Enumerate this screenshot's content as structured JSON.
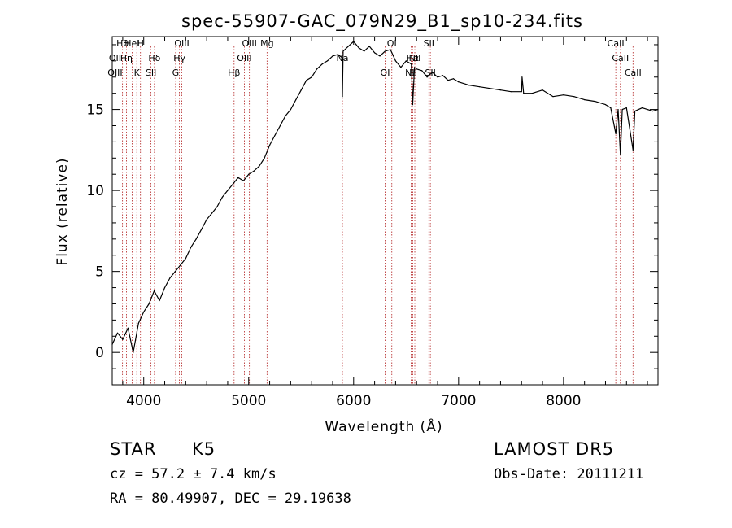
{
  "chart_data": {
    "type": "line",
    "title": "spec-55907-GAC_079N29_B1_sp10-234.fits",
    "xlabel": "Wavelength (Å)",
    "ylabel": "Flux (relative)",
    "xlim": [
      3700,
      8900
    ],
    "ylim": [
      -2,
      19.5
    ],
    "xticks": [
      4000,
      5000,
      6000,
      7000,
      8000
    ],
    "yticks": [
      0,
      5,
      10,
      15
    ],
    "grid": false,
    "series": [
      {
        "color": "#000000",
        "x": [
          3700,
          3750,
          3800,
          3850,
          3900,
          3950,
          4000,
          4050,
          4100,
          4150,
          4200,
          4250,
          4300,
          4350,
          4400,
          4450,
          4500,
          4550,
          4600,
          4650,
          4700,
          4750,
          4800,
          4850,
          4900,
          4950,
          5000,
          5050,
          5100,
          5150,
          5200,
          5250,
          5300,
          5350,
          5400,
          5450,
          5500,
          5550,
          5600,
          5650,
          5700,
          5750,
          5800,
          5850,
          5890,
          5893,
          5900,
          5950,
          6000,
          6050,
          6100,
          6150,
          6200,
          6250,
          6300,
          6350,
          6400,
          6450,
          6500,
          6550,
          6563,
          6580,
          6600,
          6650,
          6700,
          6750,
          6800,
          6850,
          6900,
          6950,
          7000,
          7100,
          7200,
          7300,
          7400,
          7500,
          7600,
          7605,
          7620,
          7700,
          7800,
          7900,
          8000,
          8100,
          8200,
          8300,
          8400,
          8450,
          8498,
          8520,
          8542,
          8560,
          8600,
          8662,
          8680,
          8750,
          8800,
          8850,
          8900
        ],
        "values": [
          0.5,
          1.2,
          0.8,
          1.5,
          0.0,
          1.8,
          2.5,
          3.0,
          3.8,
          3.2,
          4.0,
          4.6,
          5.0,
          5.4,
          5.8,
          6.5,
          7.0,
          7.6,
          8.2,
          8.6,
          9.0,
          9.6,
          10.0,
          10.4,
          10.8,
          10.6,
          11.0,
          11.2,
          11.5,
          12.0,
          12.8,
          13.4,
          14.0,
          14.6,
          15.0,
          15.6,
          16.2,
          16.8,
          17.0,
          17.5,
          17.8,
          18.0,
          18.3,
          18.4,
          18.2,
          15.8,
          18.6,
          18.9,
          19.2,
          18.8,
          18.6,
          18.9,
          18.5,
          18.3,
          18.6,
          18.7,
          18.0,
          17.6,
          18.0,
          17.8,
          15.3,
          17.6,
          17.5,
          17.4,
          17.0,
          17.3,
          17.0,
          17.1,
          16.8,
          16.9,
          16.7,
          16.5,
          16.4,
          16.3,
          16.2,
          16.1,
          16.1,
          17.0,
          16.0,
          16.0,
          16.2,
          15.8,
          15.9,
          15.8,
          15.6,
          15.5,
          15.3,
          15.1,
          13.5,
          15.0,
          12.2,
          15.0,
          15.1,
          12.5,
          14.9,
          15.1,
          15.0,
          14.9,
          15.0
        ]
      }
    ],
    "lines": [
      {
        "label": "Hθ",
        "x": 3798
      },
      {
        "label": "OII",
        "x": 3727
      },
      {
        "label": "OIII",
        "x": 3727
      },
      {
        "label": "HeI",
        "x": 3889
      },
      {
        "label": "Hη",
        "x": 3835
      },
      {
        "label": "K",
        "x": 3934
      },
      {
        "label": "H",
        "x": 3969
      },
      {
        "label": "Hδ",
        "x": 4102
      },
      {
        "label": "SII",
        "x": 4069
      },
      {
        "label": "OIII",
        "x": 4363
      },
      {
        "label": "Hγ",
        "x": 4340
      },
      {
        "label": "G",
        "x": 4304
      },
      {
        "label": "OIII",
        "x": 5007
      },
      {
        "label": "OIII",
        "x": 4959
      },
      {
        "label": "Hβ",
        "x": 4861
      },
      {
        "label": "Mg",
        "x": 5175
      },
      {
        "label": "Na",
        "x": 5893
      },
      {
        "label": "OI",
        "x": 6300
      },
      {
        "label": "OI",
        "x": 6364
      },
      {
        "label": "Hα",
        "x": 6563
      },
      {
        "label": "NII",
        "x": 6548
      },
      {
        "label": "SII",
        "x": 6717
      },
      {
        "label": "NII",
        "x": 6583
      },
      {
        "label": "SII",
        "x": 6731
      },
      {
        "label": "CaII",
        "x": 8498
      },
      {
        "label": "CaII",
        "x": 8542
      },
      {
        "label": "CaII",
        "x": 8662
      }
    ]
  },
  "info": {
    "type_label": "STAR",
    "subclass": "K5",
    "survey": "LAMOST DR5",
    "cz": "cz = 57.2 ± 7.4 km/s",
    "obs_date": "Obs-Date: 20111211",
    "coords": "RA =  80.49907, DEC =  29.19638"
  }
}
